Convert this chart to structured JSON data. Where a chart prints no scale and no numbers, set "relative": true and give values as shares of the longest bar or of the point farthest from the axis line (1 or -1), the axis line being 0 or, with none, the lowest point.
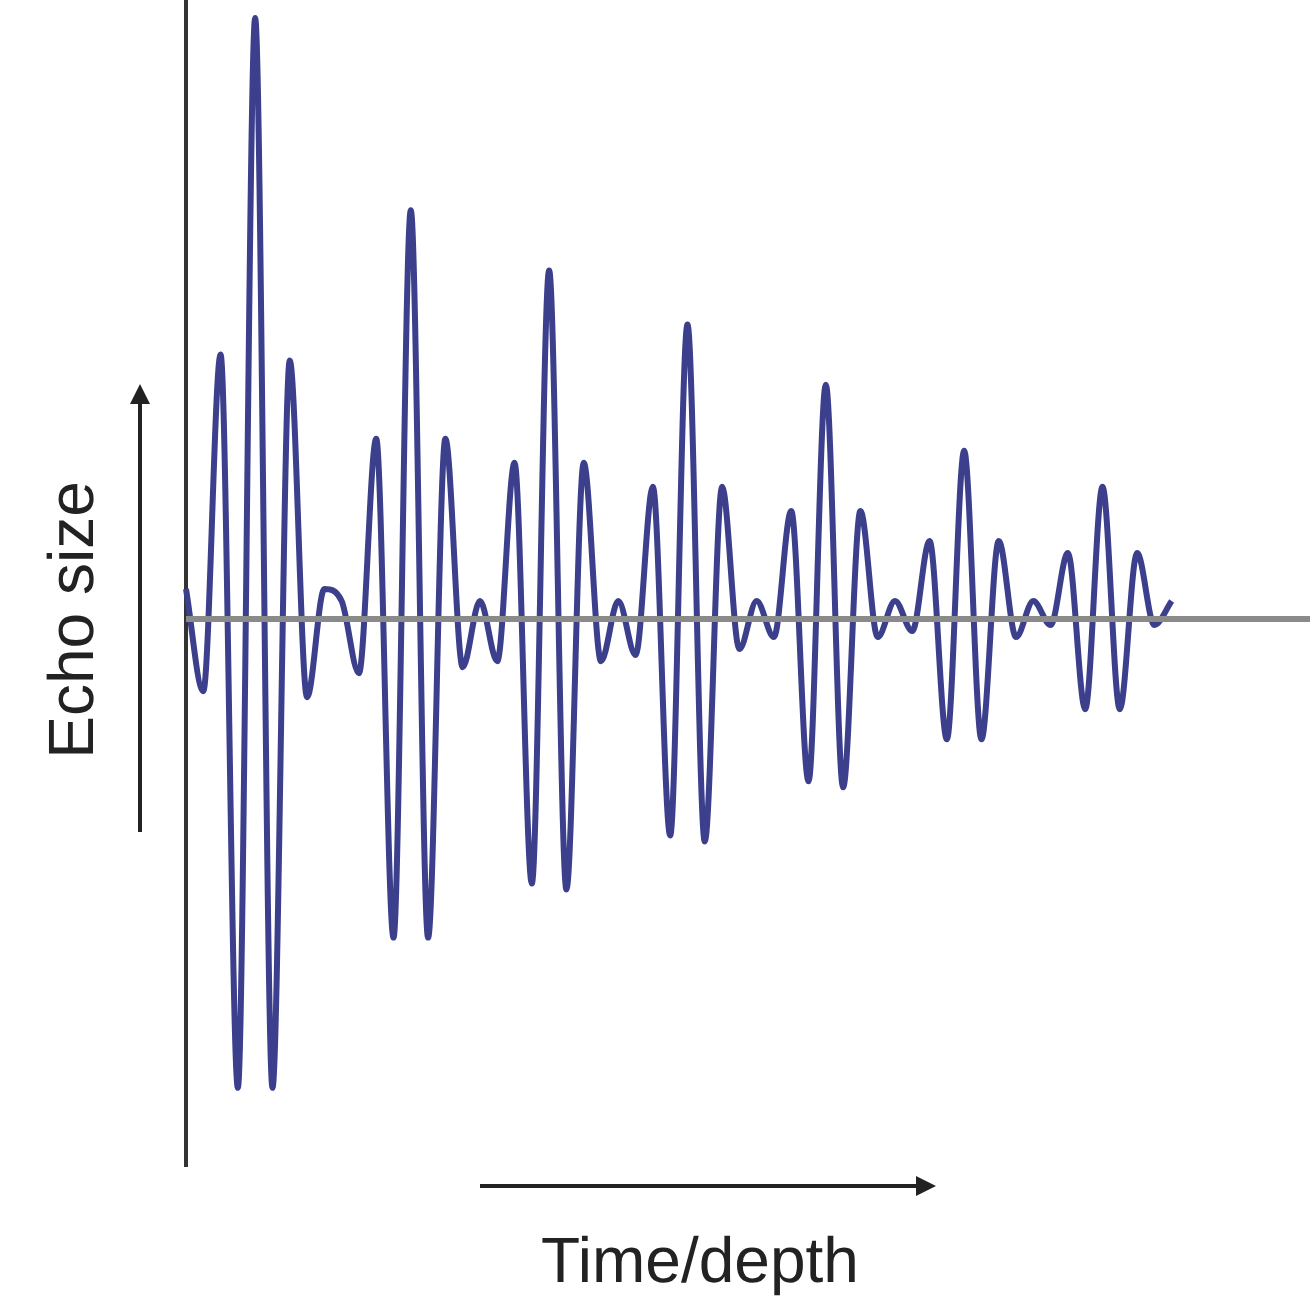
{
  "chart_data": {
    "type": "line",
    "relative": true,
    "xlabel": "Time/depth",
    "ylabel": "Echo size",
    "color": "#3b3f8c",
    "marker": "none",
    "legend": false,
    "grid": false,
    "tick_labels": false,
    "categories": [
      null,
      null,
      null,
      null,
      null,
      null,
      null,
      null,
      null,
      null,
      null,
      null,
      null,
      null,
      null,
      null,
      null,
      null,
      null,
      null,
      null,
      null,
      null,
      null,
      null,
      null,
      null,
      null,
      null,
      null,
      null,
      null,
      null,
      null,
      null,
      null,
      null,
      null,
      null,
      null,
      null,
      null,
      null,
      null,
      null,
      null,
      null,
      null,
      null,
      null,
      null,
      null,
      null,
      null,
      null,
      null,
      null,
      null,
      null,
      null,
      null,
      null,
      null,
      null,
      null,
      null
    ],
    "values": [
      0.05,
      -0.12,
      0.44,
      -0.78,
      1,
      -0.78,
      0.43,
      -0.13,
      0.05,
      0.03,
      -0.09,
      0.3,
      -0.53,
      0.68,
      -0.53,
      0.3,
      -0.08,
      0.03,
      -0.07,
      0.26,
      -0.44,
      0.58,
      -0.45,
      0.26,
      -0.07,
      0.03,
      -0.06,
      0.22,
      -0.36,
      0.49,
      -0.37,
      0.22,
      -0.05,
      0.03,
      -0.03,
      0.18,
      -0.27,
      0.39,
      -0.28,
      0.18,
      -0.03,
      0.03,
      -0.02,
      0.13,
      -0.2,
      0.28,
      -0.2,
      0.13,
      -0.03,
      0.03,
      -0.01,
      0.11,
      -0.15,
      0.22,
      -0.15,
      0.11,
      -0.01,
      0.03,
      null,
      null,
      null,
      null,
      null,
      null,
      null,
      null
    ]
  }
}
